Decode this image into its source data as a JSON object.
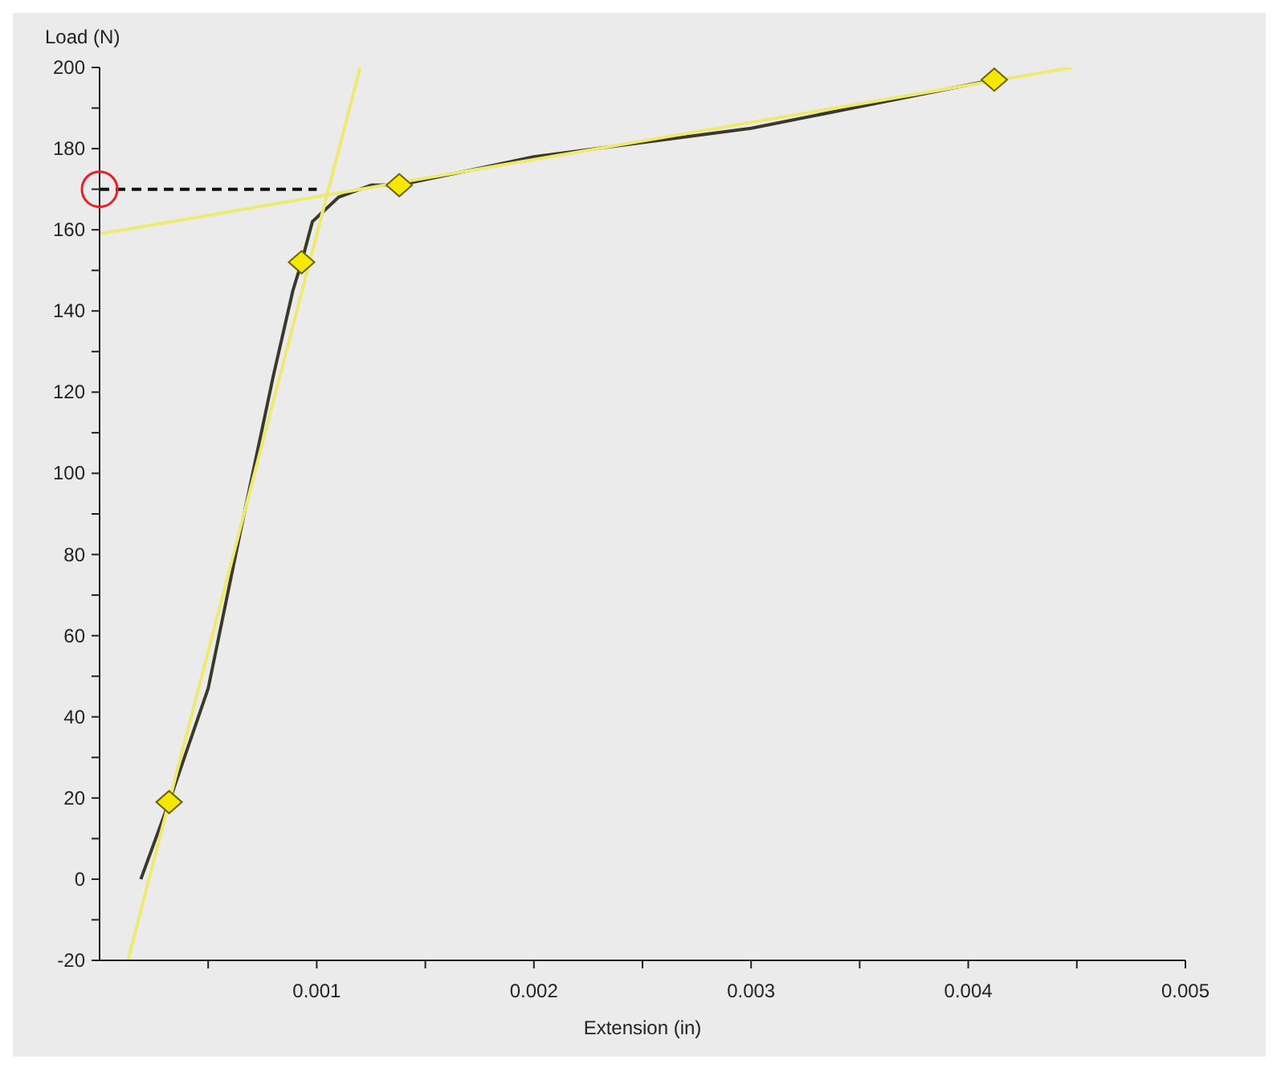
{
  "chart_data": {
    "type": "line",
    "xlabel": "Extension (in)",
    "ylabel": "Load (N)",
    "xlim": [
      0,
      0.005
    ],
    "ylim": [
      -20,
      200
    ],
    "xticks": [
      {
        "value": 0.0005,
        "label": null
      },
      0.001,
      {
        "value": 0.0015,
        "label": null
      },
      0.002,
      {
        "value": 0.0025,
        "label": null
      },
      0.003,
      {
        "value": 0.0035,
        "label": null
      },
      0.004,
      {
        "value": 0.0045,
        "label": null
      },
      0.005
    ],
    "yticks": [
      -20,
      {
        "value": -10,
        "label": null
      },
      0,
      {
        "value": 10,
        "label": null
      },
      20,
      {
        "value": 30,
        "label": null
      },
      40,
      {
        "value": 50,
        "label": null
      },
      60,
      {
        "value": 70,
        "label": null
      },
      80,
      {
        "value": 90,
        "label": null
      },
      100,
      {
        "value": 110,
        "label": null
      },
      120,
      {
        "value": 130,
        "label": null
      },
      140,
      {
        "value": 150,
        "label": null
      },
      160,
      {
        "value": 170,
        "label": null
      },
      180,
      {
        "value": 190,
        "label": null
      },
      200
    ],
    "grid": false,
    "legend": false,
    "series": [
      {
        "color": "#3a3a2a",
        "x": [
          0.00019,
          0.00032,
          0.0005,
          0.00065,
          0.0008,
          0.00089,
          0.00093,
          0.00098,
          0.0011,
          0.00125,
          0.00138,
          0.002,
          0.003,
          0.00412
        ],
        "values": [
          0,
          19,
          47,
          86,
          124,
          145,
          152,
          162,
          168,
          171,
          171,
          178,
          185,
          197
        ]
      },
      {
        "type": "scatter",
        "color": "#f5e800",
        "marker": "diamond",
        "x": [
          0.00032,
          0.00093,
          0.00138,
          0.00412
        ],
        "values": [
          19,
          152,
          171,
          197
        ]
      },
      {
        "type": "line",
        "color": "#eeea70",
        "x": [
          0.00013,
          0.0012
        ],
        "values": [
          -20,
          200
        ]
      },
      {
        "type": "line",
        "color": "#eeea70",
        "x": [
          0,
          0.00448
        ],
        "values": [
          159,
          200
        ]
      },
      {
        "type": "line",
        "color": "#111111",
        "line_style": "dashed",
        "x": [
          0,
          0.001
        ],
        "values": [
          170,
          170
        ]
      }
    ]
  }
}
